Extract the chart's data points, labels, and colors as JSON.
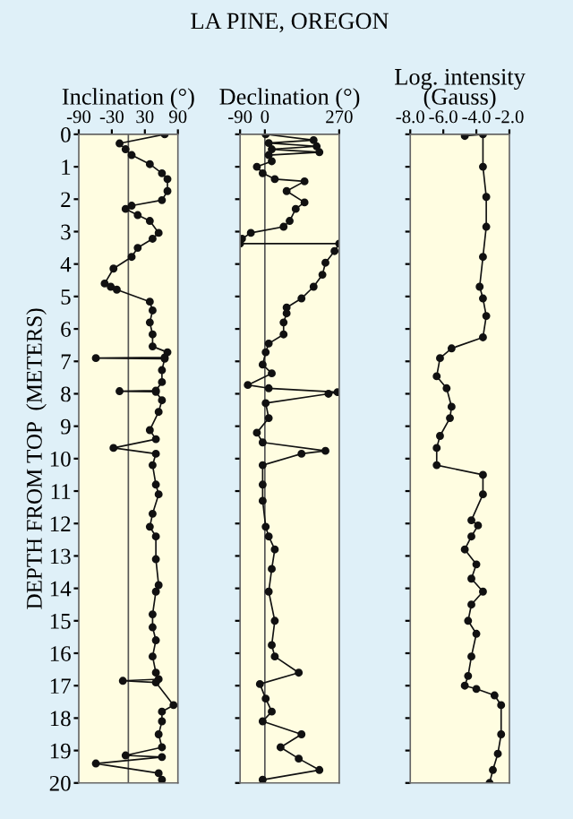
{
  "chart_data": [
    {
      "type": "line",
      "title": "Inclination (°)",
      "ylabel": "DEPTH FROM TOP  (METERS)",
      "marker": "circle",
      "line_style": "solid",
      "grid": false,
      "legend": false,
      "xlim": [
        -90,
        90
      ],
      "xticks": [
        -90,
        -30,
        30,
        90
      ],
      "ylim": [
        20,
        0
      ],
      "yticks": [
        0,
        1,
        2,
        3,
        4,
        5,
        6,
        7,
        8,
        9,
        10,
        11,
        12,
        13,
        14,
        15,
        16,
        17,
        18,
        19,
        20
      ],
      "ref_lines": [
        {
          "axis": "x",
          "value": 0,
          "color": "#555555"
        }
      ],
      "series": [
        {
          "color": "#111111",
          "x": [
            66,
            -16,
            -5,
            6,
            39,
            61,
            71,
            71,
            61,
            6,
            -5,
            17,
            39,
            55,
            44,
            17,
            6,
            -27,
            -43,
            -32,
            -21,
            39,
            44,
            39,
            44,
            44,
            71,
            66,
            -59,
            66,
            61,
            61,
            50,
            -16,
            50,
            61,
            55,
            39,
            50,
            -27,
            50,
            44,
            50,
            55,
            44,
            39,
            50,
            50,
            55,
            50,
            44,
            44,
            50,
            44,
            50,
            55,
            -10,
            50,
            82,
            61,
            61,
            55,
            61,
            -5,
            61,
            -59,
            55,
            61
          ],
          "values": [
            0,
            0.28,
            0.46,
            0.64,
            0.92,
            1.2,
            1.38,
            1.75,
            2.03,
            2.2,
            2.3,
            2.49,
            2.67,
            3.04,
            3.22,
            3.5,
            3.78,
            4.14,
            4.6,
            4.7,
            4.79,
            5.16,
            5.43,
            5.8,
            6.17,
            6.54,
            6.72,
            6.88,
            6.9,
            6.92,
            7.27,
            7.64,
            7.9,
            7.92,
            7.94,
            8.2,
            8.56,
            9.12,
            9.4,
            9.67,
            9.85,
            10.2,
            10.8,
            11.1,
            11.7,
            12.1,
            12.4,
            13.1,
            13.9,
            14.1,
            14.8,
            15.2,
            15.6,
            16.1,
            16.6,
            16.8,
            16.85,
            16.9,
            17.6,
            17.8,
            18.1,
            18.5,
            18.9,
            19.15,
            19.2,
            19.4,
            19.7,
            19.9
          ]
        }
      ]
    },
    {
      "type": "line",
      "title": "Declination (°)",
      "annotations": [
        "LA PINE, OREGON"
      ],
      "marker": "circle",
      "line_style": "solid",
      "grid": false,
      "legend": false,
      "tick_labels": "x",
      "xlim": [
        -90,
        270
      ],
      "xticks": [
        -90,
        0,
        270
      ],
      "ylim": [
        20,
        0
      ],
      "yticks": [
        0,
        1,
        2,
        3,
        4,
        5,
        6,
        7,
        8,
        9,
        10,
        11,
        12,
        13,
        14,
        15,
        16,
        17,
        18,
        19,
        20
      ],
      "ref_lines": [
        {
          "axis": "x",
          "value": 0,
          "color": "#555555"
        }
      ],
      "series": [
        {
          "color": "#111111",
          "x": [
            3,
            177,
            14,
            188,
            25,
            198,
            14,
            25,
            -29,
            -8,
            36,
            144,
            79,
            144,
            112,
            90,
            68,
            -51,
            -83,
            -90,
            270,
            253,
            220,
            209,
            177,
            133,
            79,
            79,
            68,
            68,
            14,
            3,
            -8,
            25,
            -62,
            14,
            264,
            231,
            3,
            14,
            -29,
            -8,
            220,
            133,
            -8,
            -8,
            -8,
            3,
            14,
            36,
            25,
            14,
            36,
            25,
            36,
            123,
            -18,
            3,
            25,
            -8,
            133,
            57,
            123,
            198,
            -8
          ],
          "values": [
            0,
            0.18,
            0.27,
            0.37,
            0.46,
            0.55,
            0.64,
            0.83,
            1.0,
            1.2,
            1.38,
            1.45,
            1.75,
            2.1,
            2.3,
            2.67,
            2.85,
            3.04,
            3.22,
            3.37,
            3.37,
            3.6,
            3.96,
            4.33,
            4.7,
            5.06,
            5.34,
            5.52,
            5.8,
            6.17,
            6.45,
            6.72,
            7.1,
            7.37,
            7.73,
            7.83,
            7.95,
            8.0,
            8.29,
            8.75,
            9.2,
            9.5,
            9.76,
            9.85,
            10.2,
            10.8,
            11.3,
            12.1,
            12.4,
            12.8,
            13.4,
            14.1,
            15.0,
            15.75,
            16.1,
            16.6,
            16.95,
            17.4,
            17.8,
            18.1,
            18.5,
            18.9,
            19.25,
            19.6,
            19.9
          ]
        }
      ]
    },
    {
      "type": "line",
      "title": "Log. intensity\n(Gauss)",
      "marker": "circle",
      "line_style": "solid",
      "grid": false,
      "legend": false,
      "tick_labels": "x",
      "xlim": [
        -8,
        -2
      ],
      "xticks": [
        {
          "value": -8,
          "label": "-8.0"
        },
        {
          "value": -6,
          "label": "-6.0"
        },
        {
          "value": -4,
          "label": "-4.0"
        },
        {
          "value": -2,
          "label": "-2.0"
        }
      ],
      "ylim": [
        20,
        0
      ],
      "yticks": [
        0,
        1,
        2,
        3,
        4,
        5,
        6,
        7,
        8,
        9,
        10,
        11,
        12,
        13,
        14,
        15,
        16,
        17,
        18,
        19,
        20
      ],
      "series": [
        {
          "color": "#111111",
          "x": [
            -4.7,
            -3.6,
            -3.6,
            -3.4,
            -3.4,
            -3.6,
            -3.8,
            -3.6,
            -3.4,
            -3.6,
            -5.5,
            -6.2,
            -6.4,
            -5.8,
            -5.5,
            -5.6,
            -6.2,
            -6.4,
            -6.4,
            -3.6,
            -3.6,
            -4.3,
            -3.9,
            -4.3,
            -4.7,
            -4.0,
            -4.3,
            -3.6,
            -4.3,
            -4.5,
            -4.0,
            -4.3,
            -4.5,
            -4.7,
            -4.0,
            -2.9,
            -2.5,
            -2.5,
            -2.7,
            -3.0,
            -3.2
          ],
          "values": [
            0.05,
            0,
            1.0,
            1.93,
            2.85,
            3.78,
            4.7,
            5.06,
            5.6,
            6.26,
            6.6,
            6.9,
            7.46,
            7.83,
            8.4,
            8.75,
            9.3,
            9.67,
            10.2,
            10.5,
            11.1,
            11.9,
            12.06,
            12.4,
            12.8,
            13.26,
            13.7,
            14.1,
            14.5,
            15.0,
            15.4,
            16.1,
            16.7,
            17.0,
            17.1,
            17.3,
            17.6,
            18.5,
            19.1,
            19.6,
            20
          ]
        }
      ]
    }
  ]
}
